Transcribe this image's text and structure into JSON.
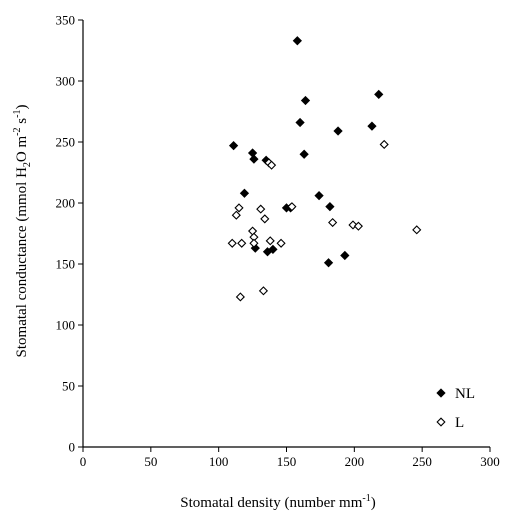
{
  "chart_data": {
    "type": "scatter",
    "title": "",
    "xlabel": {
      "main": "Stomatal density (number mm",
      "sup": "-1",
      "end": ")"
    },
    "ylabel": {
      "p1": "Stomatal conductance (mmol H",
      "sub": "2",
      "p2": "O m",
      "sup1": "-2",
      "p3": " s",
      "sup2": "-1",
      "p4": ")"
    },
    "xlim": [
      0,
      300
    ],
    "ylim": [
      0,
      350
    ],
    "xticks": [
      0,
      50,
      100,
      150,
      200,
      250,
      300
    ],
    "yticks": [
      0,
      50,
      100,
      150,
      200,
      250,
      300,
      350
    ],
    "grid": false,
    "legend_position": "bottom-right",
    "series": [
      {
        "name": "NL",
        "marker": "filled-diamond",
        "color": "#000000",
        "points": [
          [
            111,
            247
          ],
          [
            119,
            208
          ],
          [
            125,
            241
          ],
          [
            126,
            236
          ],
          [
            127,
            163
          ],
          [
            135,
            235
          ],
          [
            136,
            160
          ],
          [
            140,
            162
          ],
          [
            150,
            196
          ],
          [
            153,
            196
          ],
          [
            158,
            333
          ],
          [
            160,
            266
          ],
          [
            163,
            240
          ],
          [
            164,
            284
          ],
          [
            174,
            206
          ],
          [
            181,
            151
          ],
          [
            182,
            197
          ],
          [
            188,
            259
          ],
          [
            193,
            157
          ],
          [
            213,
            263
          ],
          [
            218,
            289
          ]
        ]
      },
      {
        "name": "L",
        "marker": "open-diamond",
        "color": "#000000",
        "points": [
          [
            110,
            167
          ],
          [
            113,
            190
          ],
          [
            115,
            196
          ],
          [
            116,
            123
          ],
          [
            117,
            167
          ],
          [
            125,
            177
          ],
          [
            126,
            172
          ],
          [
            126,
            167
          ],
          [
            131,
            195
          ],
          [
            133,
            128
          ],
          [
            134,
            187
          ],
          [
            137,
            233
          ],
          [
            138,
            169
          ],
          [
            139,
            231
          ],
          [
            146,
            167
          ],
          [
            154,
            197
          ],
          [
            184,
            184
          ],
          [
            199,
            182
          ],
          [
            203,
            181
          ],
          [
            222,
            248
          ],
          [
            246,
            178
          ]
        ]
      }
    ]
  }
}
